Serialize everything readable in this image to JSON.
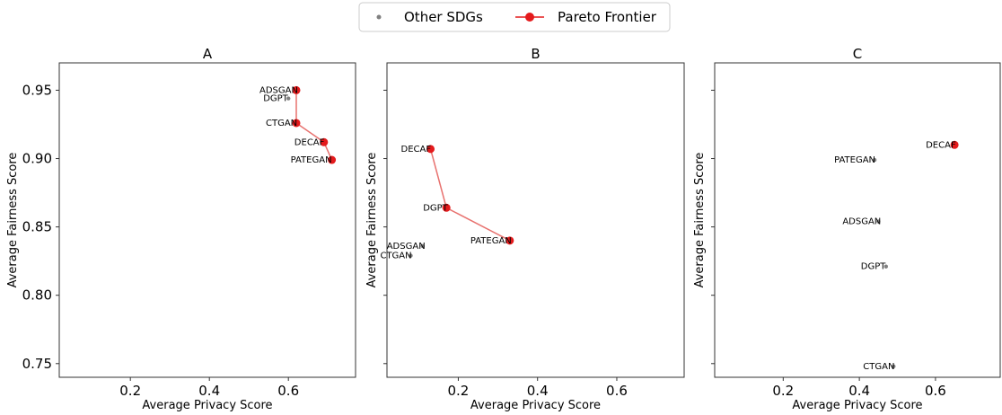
{
  "legend": {
    "other_label": "Other SDGs",
    "pareto_label": "Pareto Frontier"
  },
  "colors": {
    "other": "#808080",
    "pareto_point": "#e41a1c",
    "pareto_line": "#e8726f"
  },
  "chart_data": [
    {
      "type": "scatter",
      "title": "A",
      "xlabel": "Average Privacy Score",
      "ylabel": "Average Fairness Score",
      "xlim": [
        0.02,
        0.77
      ],
      "ylim": [
        0.74,
        0.97
      ],
      "xticks": [
        0.2,
        0.4,
        0.6
      ],
      "xtick_labels": [
        "0.2",
        "0.4",
        "0.6"
      ],
      "yticks": [
        0.75,
        0.8,
        0.85,
        0.9,
        0.95
      ],
      "ytick_labels": [
        "0.75",
        "0.80",
        "0.85",
        "0.90",
        "0.95"
      ],
      "points": [
        {
          "label": "ADSGAN",
          "x": 0.62,
          "y": 0.95,
          "pareto": true
        },
        {
          "label": "DGPT",
          "x": 0.6,
          "y": 0.944,
          "pareto": false
        },
        {
          "label": "CTGAN",
          "x": 0.62,
          "y": 0.926,
          "pareto": true
        },
        {
          "label": "DECAF",
          "x": 0.69,
          "y": 0.912,
          "pareto": true
        },
        {
          "label": "PATEGAN",
          "x": 0.71,
          "y": 0.899,
          "pareto": true
        }
      ],
      "frontier_order": [
        "ADSGAN",
        "CTGAN",
        "DECAF",
        "PATEGAN"
      ]
    },
    {
      "type": "scatter",
      "title": "B",
      "xlabel": "Average Privacy Score",
      "ylabel": "Average Fairness Score",
      "xlim": [
        0.02,
        0.77
      ],
      "ylim": [
        0.74,
        0.97
      ],
      "xticks": [
        0.2,
        0.4,
        0.6
      ],
      "xtick_labels": [
        "0.2",
        "0.4",
        "0.6"
      ],
      "yticks": [
        0.75,
        0.8,
        0.85,
        0.9,
        0.95
      ],
      "ytick_labels": [],
      "points": [
        {
          "label": "DECAF",
          "x": 0.13,
          "y": 0.907,
          "pareto": true
        },
        {
          "label": "DGPT",
          "x": 0.17,
          "y": 0.864,
          "pareto": true
        },
        {
          "label": "PATEGAN",
          "x": 0.33,
          "y": 0.84,
          "pareto": true
        },
        {
          "label": "ADSGAN",
          "x": 0.11,
          "y": 0.836,
          "pareto": false
        },
        {
          "label": "CTGAN",
          "x": 0.08,
          "y": 0.829,
          "pareto": false
        }
      ],
      "frontier_order": [
        "DECAF",
        "DGPT",
        "PATEGAN"
      ]
    },
    {
      "type": "scatter",
      "title": "C",
      "xlabel": "Average Privacy Score",
      "ylabel": "Average Fairness Score",
      "xlim": [
        0.02,
        0.77
      ],
      "ylim": [
        0.74,
        0.97
      ],
      "xticks": [
        0.2,
        0.4,
        0.6
      ],
      "xtick_labels": [
        "0.2",
        "0.4",
        "0.6"
      ],
      "yticks": [
        0.75,
        0.8,
        0.85,
        0.9,
        0.95
      ],
      "ytick_labels": [],
      "points": [
        {
          "label": "DECAF",
          "x": 0.65,
          "y": 0.91,
          "pareto": true
        },
        {
          "label": "PATEGAN",
          "x": 0.44,
          "y": 0.899,
          "pareto": false
        },
        {
          "label": "ADSGAN",
          "x": 0.45,
          "y": 0.854,
          "pareto": false
        },
        {
          "label": "DGPT",
          "x": 0.47,
          "y": 0.821,
          "pareto": false
        },
        {
          "label": "CTGAN",
          "x": 0.49,
          "y": 0.748,
          "pareto": false
        }
      ],
      "frontier_order": [
        "DECAF"
      ]
    }
  ]
}
